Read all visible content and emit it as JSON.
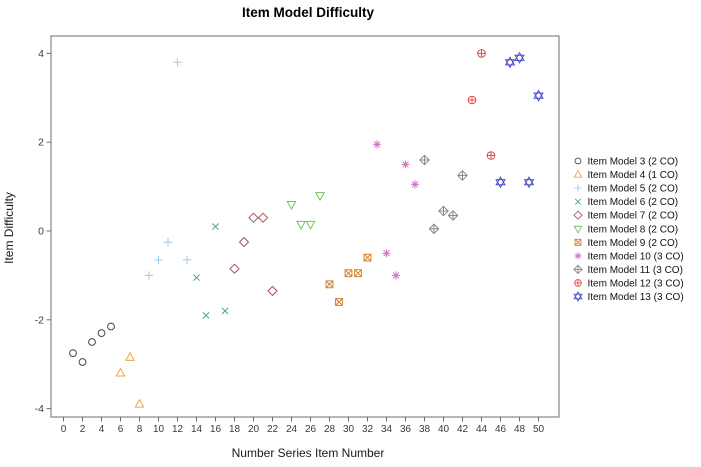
{
  "chart_data": {
    "type": "scatter",
    "title": "Item Model Difficulty",
    "xlabel": "Number Series Item Number",
    "ylabel": "Item Difficulty",
    "xlim": [
      0,
      50
    ],
    "ylim": [
      -4,
      4
    ],
    "x_ticks": [
      0,
      2,
      4,
      6,
      8,
      10,
      12,
      14,
      16,
      18,
      20,
      22,
      24,
      26,
      28,
      30,
      32,
      34,
      36,
      38,
      40,
      42,
      44,
      46,
      48,
      50
    ],
    "y_ticks": [
      4,
      2,
      0,
      -2,
      -4
    ],
    "grid": false,
    "legend_position": "right",
    "axis_color": "#6e6e6e",
    "tick_label_color": "#3a3a3a",
    "series": [
      {
        "name": "Item Model 3 (2 CO)",
        "marker": "circle-icon",
        "color": "#474747",
        "points": [
          [
            1,
            -2.75
          ],
          [
            2,
            -2.95
          ],
          [
            3,
            -2.5
          ],
          [
            4,
            -2.3
          ],
          [
            5,
            -2.15
          ]
        ]
      },
      {
        "name": "Item Model 4 (1 CO)",
        "marker": "triangle-up-icon",
        "color": "#e5a944",
        "points": [
          [
            6,
            -3.2
          ],
          [
            7,
            -2.85
          ],
          [
            8,
            -3.9
          ]
        ]
      },
      {
        "name": "Item Model 5 (2 CO)",
        "marker": "plus-icon",
        "color": "#9fcbe8",
        "points": [
          [
            9,
            -1.0
          ],
          [
            10,
            -0.65
          ],
          [
            11,
            -0.25
          ],
          [
            12,
            3.8
          ],
          [
            13,
            -0.65
          ]
        ]
      },
      {
        "name": "Item Model 6 (2 CO)",
        "marker": "x-icon",
        "color": "#46a58a",
        "points": [
          [
            14,
            -1.05
          ],
          [
            15,
            -1.9
          ],
          [
            16,
            0.1
          ],
          [
            17,
            -1.8
          ]
        ]
      },
      {
        "name": "Item Model 7 (2 CO)",
        "marker": "diamond-icon",
        "color": "#a85155",
        "points": [
          [
            18,
            -0.85
          ],
          [
            19,
            -0.25
          ],
          [
            20,
            0.3
          ],
          [
            21,
            0.3
          ],
          [
            22,
            -1.35
          ]
        ]
      },
      {
        "name": "Item Model 8 (2 CO)",
        "marker": "triangle-down-icon",
        "color": "#7abe62",
        "points": [
          [
            24,
            0.6
          ],
          [
            25,
            0.15
          ],
          [
            26,
            0.15
          ],
          [
            27,
            0.8
          ]
        ]
      },
      {
        "name": "Item Model 9 (2 CO)",
        "marker": "square-x-icon",
        "color": "#d0822f",
        "points": [
          [
            28,
            -1.2
          ],
          [
            29,
            -1.6
          ],
          [
            30,
            -0.95
          ],
          [
            31,
            -0.95
          ],
          [
            32,
            -0.6
          ]
        ]
      },
      {
        "name": "Item Model 10 (3 CO)",
        "marker": "asterisk-icon",
        "color": "#ce72c5",
        "points": [
          [
            33,
            1.95
          ],
          [
            34,
            -0.5
          ],
          [
            35,
            -1.0
          ],
          [
            36,
            1.5
          ],
          [
            37,
            1.05
          ]
        ]
      },
      {
        "name": "Item Model 11 (3 CO)",
        "marker": "diamond-plus-icon",
        "color": "#8a8a8a",
        "points": [
          [
            38,
            1.6
          ],
          [
            39,
            0.05
          ],
          [
            40,
            0.45
          ],
          [
            41,
            0.35
          ],
          [
            42,
            1.25
          ]
        ]
      },
      {
        "name": "Item Model 12 (3 CO)",
        "marker": "circle-plus-icon",
        "color": "#df4a45",
        "points": [
          [
            43,
            2.95
          ],
          [
            44,
            4.0
          ],
          [
            45,
            1.7
          ]
        ]
      },
      {
        "name": "Item Model 13 (3 CO)",
        "marker": "star-of-david-icon",
        "color": "#4a4ac8",
        "points": [
          [
            46,
            1.1
          ],
          [
            47,
            3.8
          ],
          [
            48,
            3.9
          ],
          [
            49,
            1.1
          ],
          [
            50,
            3.05
          ]
        ]
      }
    ]
  }
}
